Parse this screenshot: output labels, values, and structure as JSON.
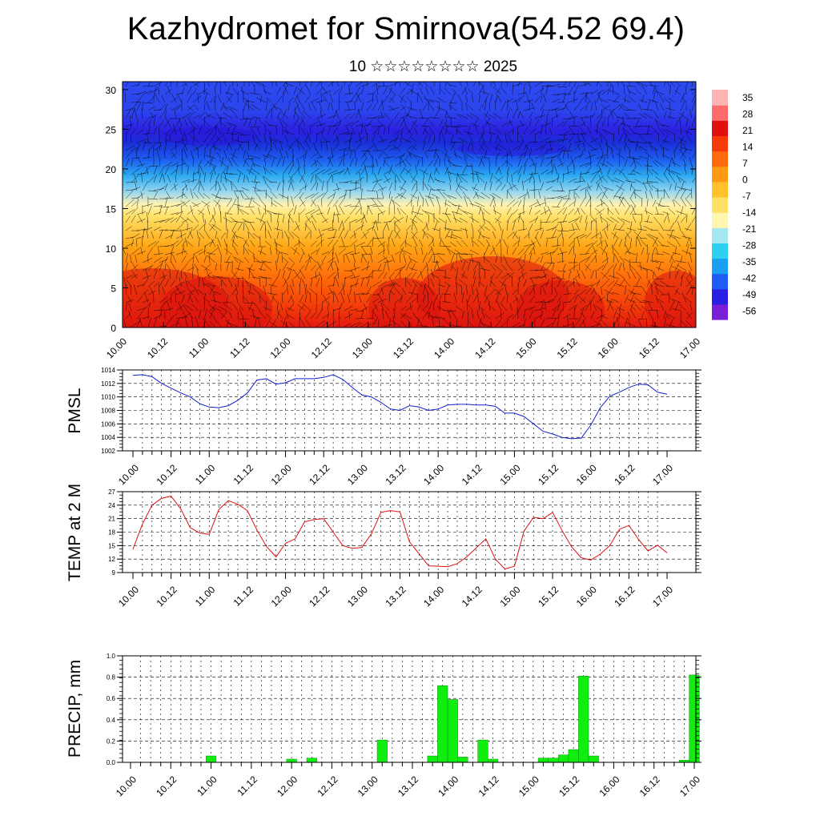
{
  "title": "Kazhydromet for Smirnova(54.52 69.4)",
  "subtitle": "10 ☆☆☆☆☆☆☆☆ 2025",
  "time_ticks": [
    "10.00",
    "10.12",
    "11.00",
    "11.12",
    "12.00",
    "12.12",
    "13.00",
    "13.12",
    "14.00",
    "14.12",
    "15.00",
    "15.12",
    "16.00",
    "16.12",
    "17.00"
  ],
  "chart_data": [
    {
      "type": "heatmap",
      "name": "",
      "x": [
        "10.00",
        "10.12",
        "11.00",
        "11.12",
        "12.00",
        "12.12",
        "13.00",
        "13.12",
        "14.00",
        "14.12",
        "15.00",
        "15.12",
        "16.00",
        "16.12",
        "17.00"
      ],
      "ylim": [
        0,
        31
      ],
      "y_ticks": [
        0,
        5,
        10,
        15,
        20,
        25,
        30
      ],
      "colorbar_ticks": [
        35,
        28,
        21,
        14,
        7,
        0,
        -7,
        -14,
        -21,
        -28,
        -35,
        -42,
        -49,
        -56
      ],
      "colorbar_range": [
        -60,
        38
      ],
      "colorbar_colors": [
        "#7a1fd6",
        "#2b1fe6",
        "#1e5cf5",
        "#1aa0f2",
        "#2dd0f0",
        "#a6e8f0",
        "#fff6b0",
        "#ffe066",
        "#ffc22a",
        "#ff9a12",
        "#ff6a0a",
        "#f53a08",
        "#e01010",
        "#ff6a6a",
        "#ffb4b4"
      ],
      "temperature_profile_by_height": [
        [
          0,
          30
        ],
        [
          5,
          24
        ],
        [
          10,
          10
        ],
        [
          14,
          -5
        ],
        [
          17,
          -28
        ],
        [
          20,
          -45
        ],
        [
          23,
          -58
        ],
        [
          26,
          -52
        ],
        [
          31,
          -52
        ]
      ],
      "wind_vectors": true
    },
    {
      "type": "line",
      "ylabel": "PMSL",
      "ylim": [
        1002,
        1014
      ],
      "y_ticks": [
        1002,
        1004,
        1006,
        1008,
        1010,
        1012,
        1014
      ],
      "color": "#1020d0",
      "x": [
        0,
        0.125,
        0.25,
        0.375,
        0.5,
        0.625,
        0.75,
        0.875,
        1,
        1.125,
        1.25,
        1.375,
        1.5,
        1.625,
        1.75,
        1.875,
        2,
        2.125,
        2.25,
        2.375,
        2.5,
        2.625,
        2.75,
        2.875,
        3,
        3.125,
        3.25,
        3.375,
        3.5,
        3.625,
        3.75,
        3.875,
        4,
        4.125,
        4.25,
        4.375,
        4.5,
        4.625,
        4.75,
        4.875,
        5,
        5.125,
        5.25,
        5.375,
        5.5,
        5.625,
        5.75,
        5.875,
        6,
        6.125,
        6.25,
        6.375,
        6.5,
        6.625,
        6.75,
        6.875,
        7
      ],
      "values": [
        1013.2,
        1013.3,
        1013.0,
        1012.0,
        1011.3,
        1010.6,
        1010.0,
        1009.0,
        1008.5,
        1008.4,
        1008.7,
        1009.5,
        1010.6,
        1012.5,
        1012.7,
        1011.9,
        1012.1,
        1012.7,
        1012.7,
        1012.7,
        1012.9,
        1013.3,
        1012.6,
        1011.4,
        1010.3,
        1010.0,
        1009.2,
        1008.2,
        1008.0,
        1008.7,
        1008.5,
        1008.0,
        1008.2,
        1008.8,
        1008.9,
        1008.9,
        1008.8,
        1008.8,
        1008.6,
        1007.6,
        1007.6,
        1007.1,
        1006.0,
        1004.9,
        1004.5,
        1004.0,
        1003.8,
        1003.9,
        1005.8,
        1008.4,
        1010.1,
        1010.7,
        1011.4,
        1011.9,
        1011.8,
        1010.7,
        1010.4
      ]
    },
    {
      "type": "line",
      "ylabel": "TEMP at 2 M",
      "ylim": [
        9,
        27
      ],
      "y_ticks": [
        9,
        12,
        15,
        18,
        21,
        24,
        27
      ],
      "color": "#e01010",
      "x": [
        0,
        0.125,
        0.25,
        0.375,
        0.5,
        0.625,
        0.75,
        0.875,
        1,
        1.125,
        1.25,
        1.375,
        1.5,
        1.625,
        1.75,
        1.875,
        2,
        2.125,
        2.25,
        2.375,
        2.5,
        2.625,
        2.75,
        2.875,
        3,
        3.125,
        3.25,
        3.375,
        3.5,
        3.625,
        3.75,
        3.875,
        4,
        4.125,
        4.25,
        4.375,
        4.5,
        4.625,
        4.75,
        4.875,
        5,
        5.125,
        5.25,
        5.375,
        5.5,
        5.625,
        5.75,
        5.875,
        6,
        6.125,
        6.25,
        6.375,
        6.5,
        6.625,
        6.75,
        6.875,
        7
      ],
      "values": [
        14.2,
        19.8,
        24.0,
        25.5,
        26.0,
        23.2,
        19.0,
        17.8,
        17.5,
        23.0,
        25.0,
        24.2,
        22.8,
        18.5,
        14.8,
        12.5,
        15.5,
        16.5,
        20.3,
        20.8,
        21.0,
        18.0,
        15.0,
        14.4,
        14.6,
        17.6,
        22.4,
        22.8,
        22.5,
        15.8,
        13.2,
        10.5,
        10.4,
        10.3,
        11.0,
        12.5,
        14.5,
        16.5,
        12.0,
        9.8,
        10.4,
        18.2,
        21.3,
        21.0,
        22.4,
        18.3,
        14.7,
        12.3,
        11.8,
        13.1,
        15.0,
        18.6,
        19.5,
        16.4,
        13.8,
        15.1,
        13.4
      ]
    },
    {
      "type": "bar",
      "ylabel": "PRECIP, mm",
      "ylim": [
        0,
        1.0
      ],
      "y_ticks": [
        "0.0",
        "0.2",
        "0.4",
        "0.6",
        "0.8",
        "1.0"
      ],
      "color": "#10ee10",
      "x": [
        1.0,
        2.0,
        2.25,
        3.125,
        3.75,
        3.875,
        4.0,
        4.125,
        4.375,
        4.5,
        5.125,
        5.25,
        5.375,
        5.5,
        5.625,
        5.75,
        5.875,
        6.875,
        7.0
      ],
      "values": [
        0.06,
        0.03,
        0.04,
        0.21,
        0.06,
        0.72,
        0.59,
        0.05,
        0.21,
        0.03,
        0.04,
        0.04,
        0.07,
        0.12,
        0.81,
        0.06,
        0.0,
        0.02,
        0.82
      ]
    }
  ]
}
